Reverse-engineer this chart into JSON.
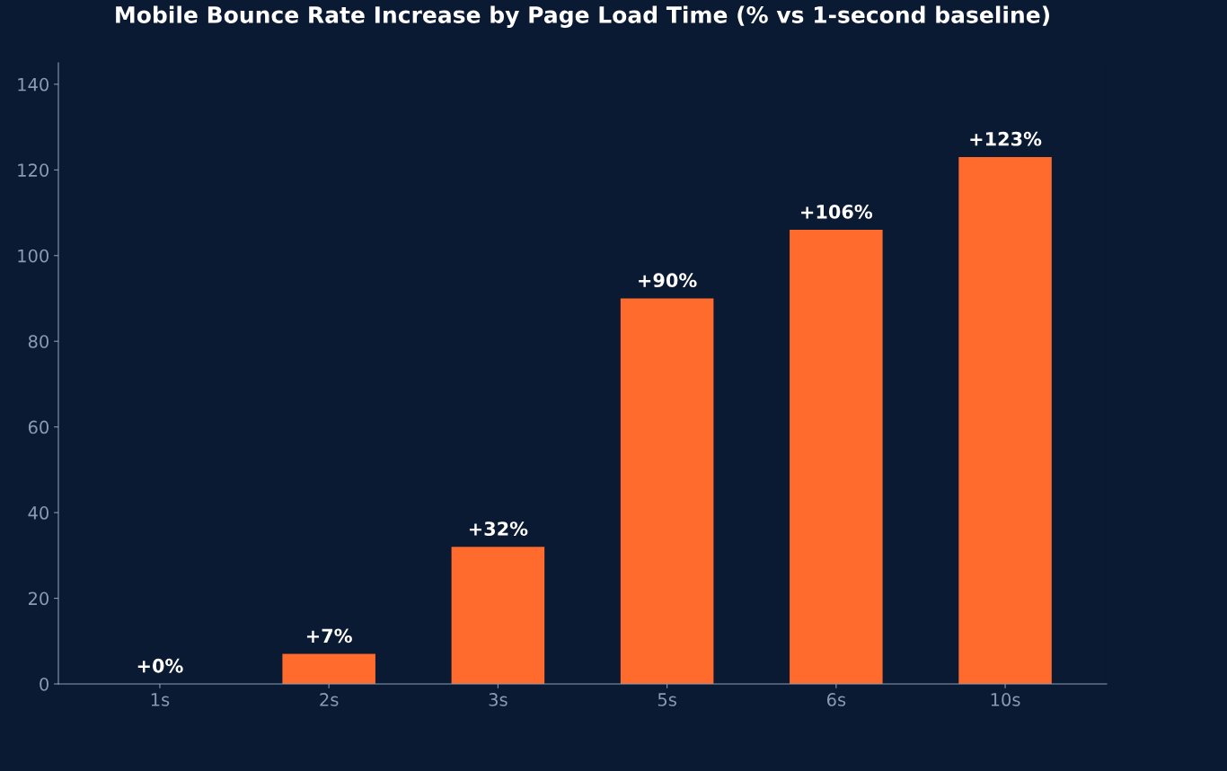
{
  "chart_data": {
    "type": "bar",
    "title": "Mobile Bounce Rate Increase by Page Load Time (% vs 1-second baseline)",
    "categories": [
      "1s",
      "2s",
      "3s",
      "5s",
      "6s",
      "10s"
    ],
    "values": [
      0,
      7,
      32,
      90,
      106,
      123
    ],
    "value_labels": [
      "+0%",
      "+7%",
      "+32%",
      "+90%",
      "+106%",
      "+123%"
    ],
    "color": "#ff6b2c",
    "ylim": [
      0,
      145
    ],
    "yticks": [
      0,
      20,
      40,
      60,
      80,
      100,
      120,
      140
    ],
    "grid": false
  }
}
